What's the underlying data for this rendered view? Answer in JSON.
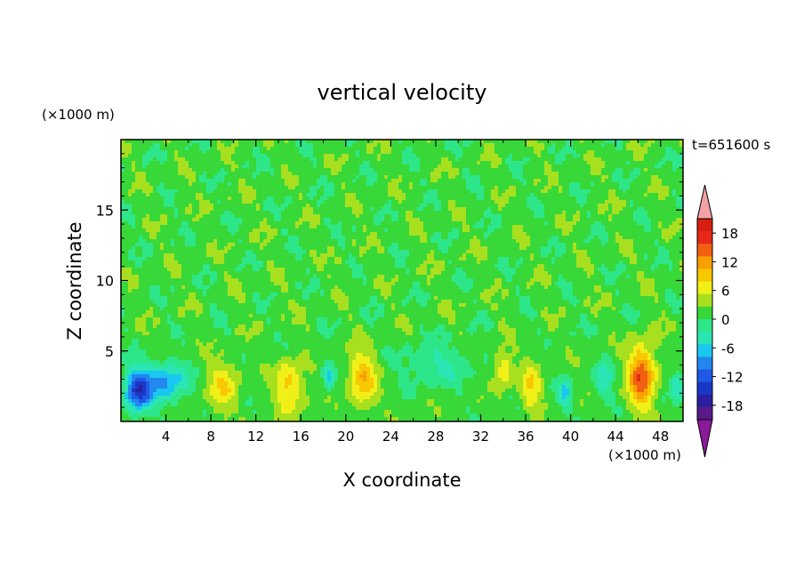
{
  "chart_data": {
    "type": "heatmap",
    "title": "vertical velocity",
    "xlabel": "X coordinate",
    "ylabel": "Z coordinate",
    "x_unit": "(×1000 m)",
    "y_unit": "(×1000 m)",
    "time_label": "t=651600 s",
    "xlim": [
      0,
      50
    ],
    "ylim": [
      0,
      20
    ],
    "x_ticks": [
      4,
      8,
      12,
      16,
      20,
      24,
      28,
      32,
      36,
      40,
      44,
      48
    ],
    "y_ticks": [
      5,
      10,
      15
    ],
    "colorbar": {
      "levels": [
        -21,
        -18,
        -15,
        -12,
        -9,
        -6,
        -3,
        0,
        3,
        6,
        9,
        12,
        15,
        18,
        21
      ],
      "tick_labels": [
        18,
        12,
        6,
        0,
        -6,
        -12,
        -18
      ],
      "colors": [
        "#5a1a8a",
        "#2a1fa0",
        "#1a37c8",
        "#1f5ae6",
        "#2288f0",
        "#19c8f0",
        "#2ae6b4",
        "#2ee68a",
        "#38d838",
        "#a8e020",
        "#f0f018",
        "#f8c800",
        "#f8a000",
        "#f06010",
        "#e82818",
        "#d81e10"
      ],
      "extend_low_color": "#8a1a9a",
      "extend_high_color": "#f4a0a8"
    },
    "background_level": 1.5,
    "features": [
      {
        "x": 1.5,
        "z": 2.2,
        "peak": -17,
        "sx": 1.2,
        "sz": 1.5,
        "kind": "downdraft"
      },
      {
        "x": 4.0,
        "z": 2.8,
        "peak": -11,
        "sx": 1.8,
        "sz": 1.4,
        "kind": "downdraft"
      },
      {
        "x": 9.0,
        "z": 2.5,
        "peak": 7,
        "sx": 1.4,
        "sz": 1.8,
        "kind": "updraft"
      },
      {
        "x": 15.0,
        "z": 2.5,
        "peak": 9,
        "sx": 1.3,
        "sz": 1.8,
        "kind": "updraft"
      },
      {
        "x": 18.5,
        "z": 3.2,
        "peak": -9,
        "sx": 0.5,
        "sz": 1.0,
        "kind": "downdraft"
      },
      {
        "x": 21.5,
        "z": 3.0,
        "peak": 10,
        "sx": 1.2,
        "sz": 2.0,
        "kind": "updraft"
      },
      {
        "x": 28.0,
        "z": 4.0,
        "peak": -5,
        "sx": 3.0,
        "sz": 1.5,
        "kind": "downdraft"
      },
      {
        "x": 34.0,
        "z": 3.6,
        "peak": 7,
        "sx": 0.9,
        "sz": 1.4,
        "kind": "updraft"
      },
      {
        "x": 36.5,
        "z": 2.4,
        "peak": 8,
        "sx": 0.9,
        "sz": 1.5,
        "kind": "updraft"
      },
      {
        "x": 39.5,
        "z": 2.0,
        "peak": -9,
        "sx": 0.5,
        "sz": 1.0,
        "kind": "downdraft"
      },
      {
        "x": 43.0,
        "z": 3.0,
        "peak": -6,
        "sx": 0.8,
        "sz": 1.4,
        "kind": "downdraft"
      },
      {
        "x": 46.3,
        "z": 3.2,
        "peak": 16,
        "sx": 1.2,
        "sz": 2.2,
        "kind": "updraft"
      },
      {
        "x": 49.5,
        "z": 2.6,
        "peak": -7,
        "sx": 0.6,
        "sz": 1.2,
        "kind": "downdraft"
      }
    ]
  }
}
